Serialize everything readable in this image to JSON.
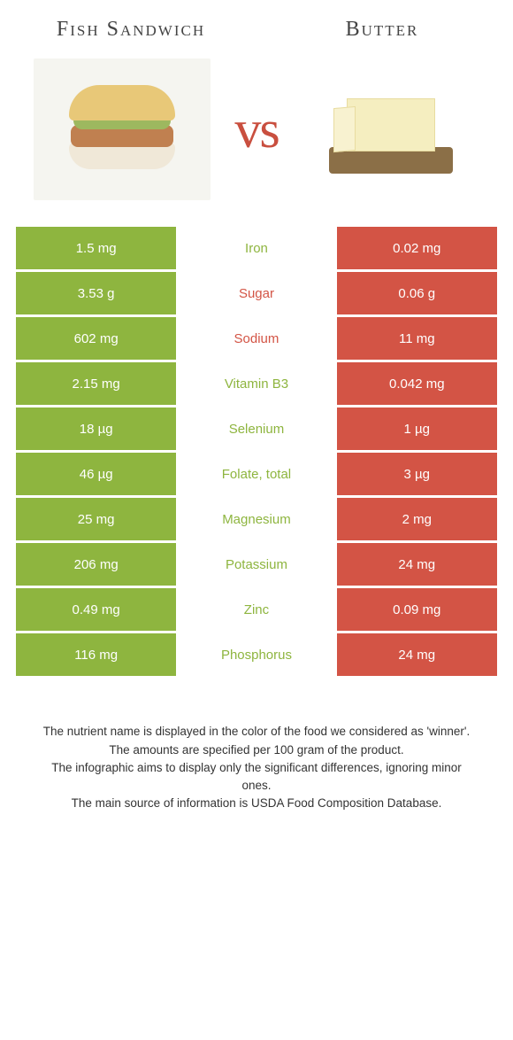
{
  "food1": {
    "name": "Fish Sandwich",
    "color": "#8eb53f"
  },
  "food2": {
    "name": "Butter",
    "color": "#d35445"
  },
  "vs_label": "vs",
  "vs_color": "#c94f3f",
  "rows": [
    {
      "left": "1.5 mg",
      "label": "Iron",
      "right": "0.02 mg",
      "winner": "left"
    },
    {
      "left": "3.53 g",
      "label": "Sugar",
      "right": "0.06 g",
      "winner": "right"
    },
    {
      "left": "602 mg",
      "label": "Sodium",
      "right": "11 mg",
      "winner": "right"
    },
    {
      "left": "2.15 mg",
      "label": "Vitamin B3",
      "right": "0.042 mg",
      "winner": "left"
    },
    {
      "left": "18 µg",
      "label": "Selenium",
      "right": "1 µg",
      "winner": "left"
    },
    {
      "left": "46 µg",
      "label": "Folate, total",
      "right": "3 µg",
      "winner": "left"
    },
    {
      "left": "25 mg",
      "label": "Magnesium",
      "right": "2 mg",
      "winner": "left"
    },
    {
      "left": "206 mg",
      "label": "Potassium",
      "right": "24 mg",
      "winner": "left"
    },
    {
      "left": "0.49 mg",
      "label": "Zinc",
      "right": "0.09 mg",
      "winner": "left"
    },
    {
      "left": "116 mg",
      "label": "Phosphorus",
      "right": "24 mg",
      "winner": "left"
    }
  ],
  "footer": {
    "line1": "The nutrient name is displayed in the color of the food we considered as 'winner'.",
    "line2": "The amounts are specified per 100 gram of the product.",
    "line3": "The infographic aims to display only the significant differences, ignoring minor ones.",
    "line4": "The main source of information is USDA Food Composition Database."
  }
}
